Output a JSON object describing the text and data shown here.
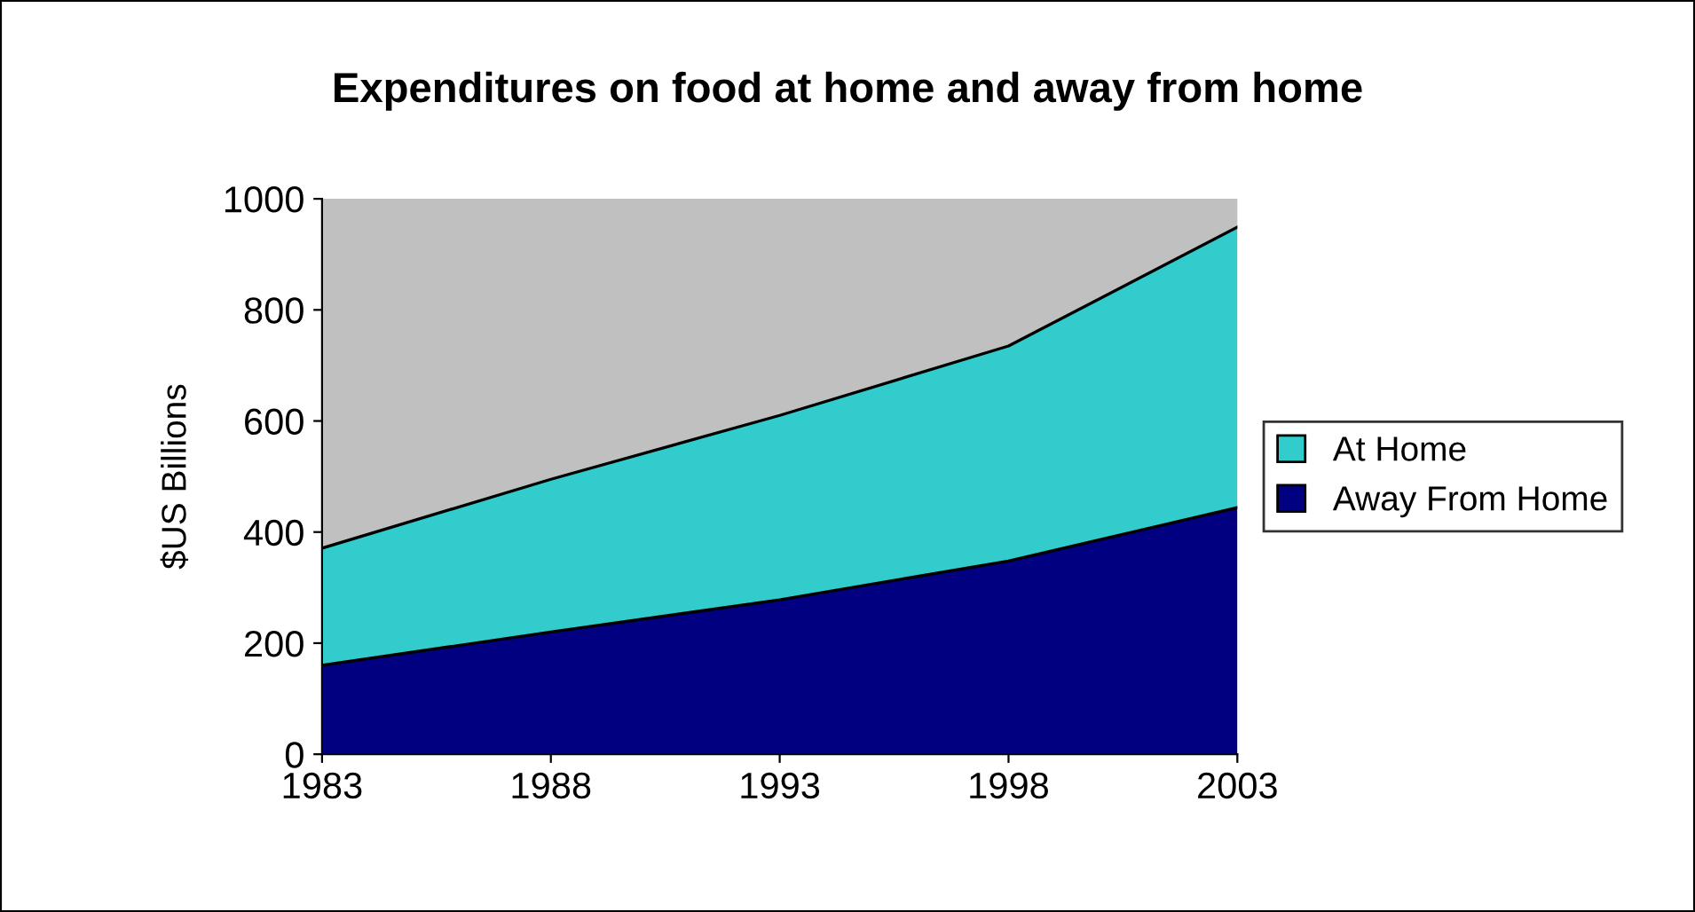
{
  "chart_data": {
    "type": "area",
    "title": "Expenditures on food at home and away from home",
    "ylabel": "$US Billions",
    "x": [
      1983,
      1988,
      1993,
      1998,
      2003
    ],
    "series": [
      {
        "name": "Away From Home",
        "color": "#000080",
        "values": [
          160,
          220,
          278,
          348,
          444
        ]
      },
      {
        "name": "At Home",
        "color": "#33cccc",
        "values": [
          211,
          275,
          332,
          387,
          505
        ]
      }
    ],
    "stacked": true,
    "xlim": [
      1983,
      2003
    ],
    "xticks": [
      1983,
      1988,
      1993,
      1998,
      2003
    ],
    "ylim": [
      0,
      1000
    ],
    "yticks": [
      0,
      200,
      400,
      600,
      800,
      1000
    ],
    "grid": false,
    "legend": "right"
  }
}
